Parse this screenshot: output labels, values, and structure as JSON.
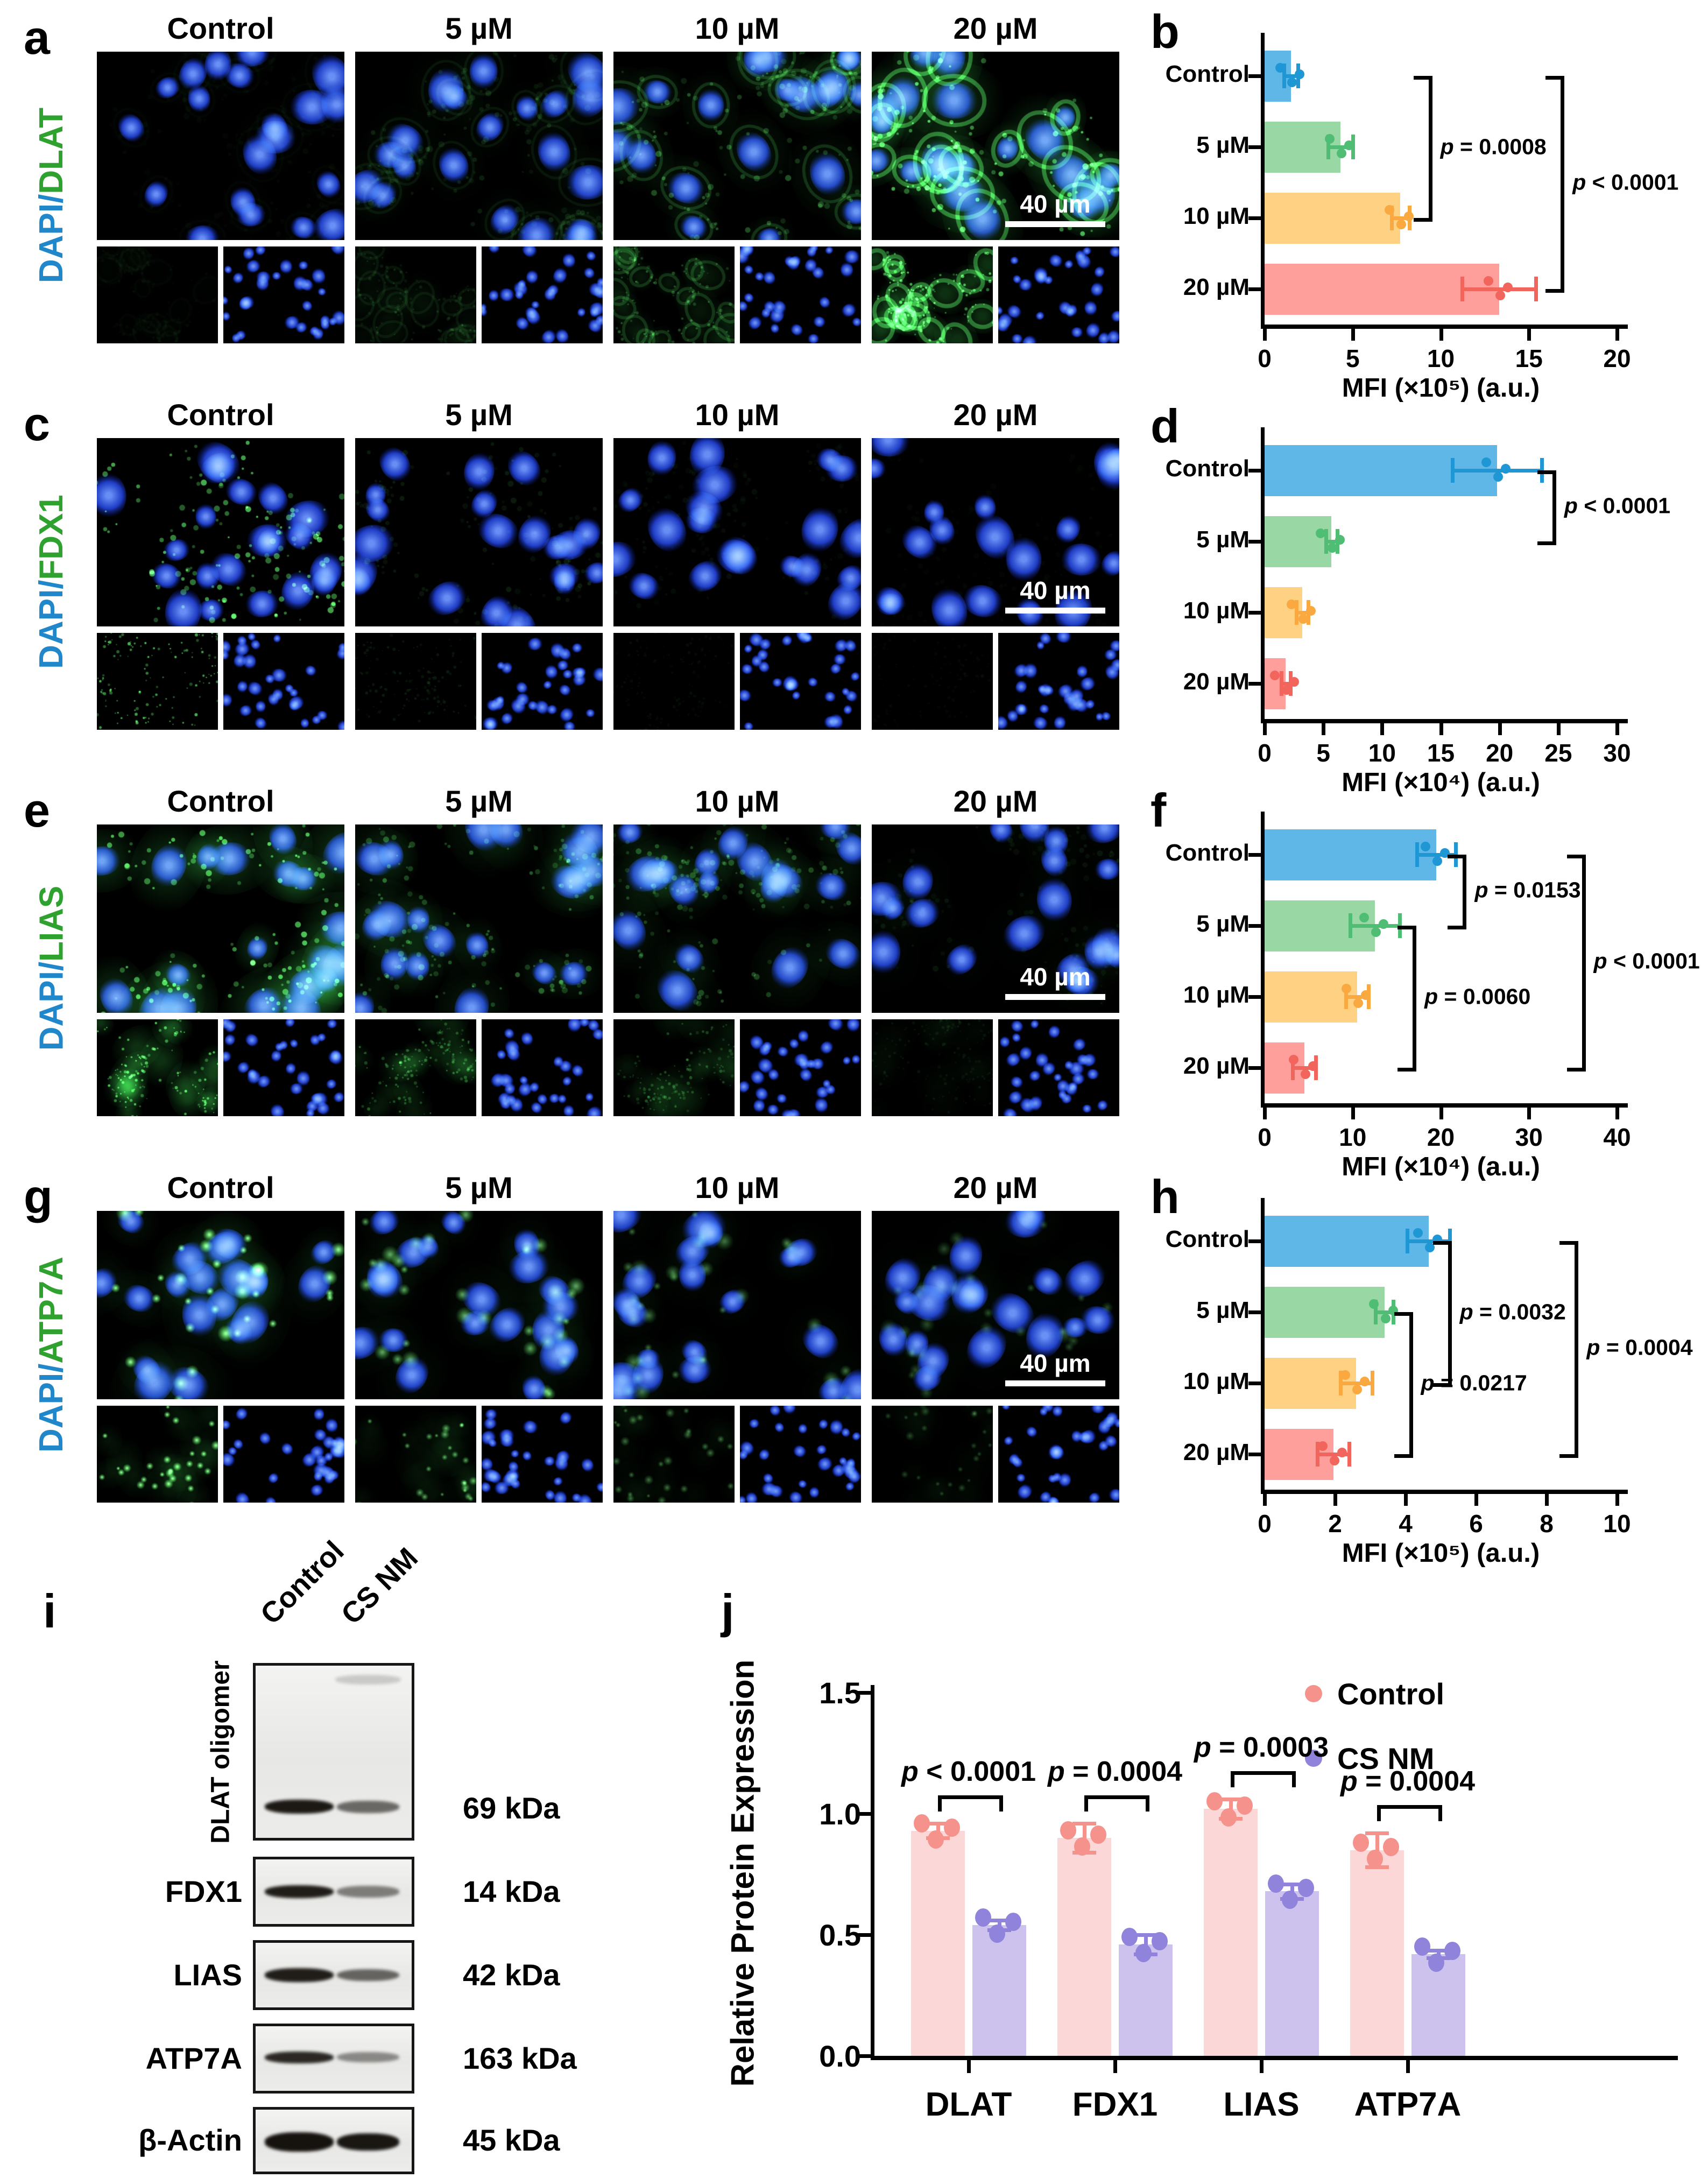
{
  "palette": {
    "bar_colors": [
      "#5FB7E8",
      "#99D8A4",
      "#FFD183",
      "#FF9F9B"
    ],
    "marker_colors": [
      "#1F97D4",
      "#4FBE74",
      "#F9A93F",
      "#F2655C"
    ],
    "stain_blue_color": "#2187CB",
    "stain_green_color": "#2FA12F",
    "axis_color": "#000000",
    "scalebar_color": "#FFFFFF"
  },
  "dose_labels": [
    "Control",
    "5 µM",
    "10 µM",
    "20 µM"
  ],
  "scale_bar_label": "40 µm",
  "microscopy_rows": [
    {
      "letter": "a",
      "stain_blue": "DAPI/",
      "stain_green": "DLAT"
    },
    {
      "letter": "c",
      "stain_blue": "DAPI/",
      "stain_green": "FDX1"
    },
    {
      "letter": "e",
      "stain_blue": "DAPI/",
      "stain_green": "LIAS"
    },
    {
      "letter": "g",
      "stain_blue": "DAPI/",
      "stain_green": "ATP7A"
    }
  ],
  "chart_data": [
    {
      "panel": "b",
      "type": "bar",
      "orientation": "horizontal",
      "categories": [
        "Control",
        "5 µM",
        "10 µM",
        "20 µM"
      ],
      "values": [
        1.5,
        4.3,
        7.7,
        13.3
      ],
      "errors": [
        0.4,
        0.7,
        0.5,
        2.1
      ],
      "xlabel": "MFI (×10⁵) (a.u.)",
      "xlim": [
        0,
        20
      ],
      "xticks": [
        0,
        5,
        10,
        15,
        20
      ],
      "annotations": [
        {
          "label": "p = 0.0008",
          "from": 0,
          "to": 2,
          "x": 9.3
        },
        {
          "label": "p < 0.0001",
          "from": 0,
          "to": 3,
          "x": 16.8
        }
      ]
    },
    {
      "panel": "d",
      "type": "bar",
      "orientation": "horizontal",
      "categories": [
        "Control",
        "5 µM",
        "10 µM",
        "20 µM"
      ],
      "values": [
        19.8,
        5.7,
        3.2,
        1.8
      ],
      "errors": [
        3.8,
        0.5,
        0.5,
        0.4
      ],
      "xlabel": "MFI (×10⁴) (a.u.)",
      "xlim": [
        0,
        30
      ],
      "xticks": [
        0,
        5,
        10,
        15,
        20,
        25,
        30
      ],
      "annotations": [
        {
          "label": "p < 0.0001",
          "from": 0,
          "to": 1,
          "x": 24.5
        }
      ]
    },
    {
      "panel": "f",
      "type": "bar",
      "orientation": "horizontal",
      "categories": [
        "Control",
        "5 µM",
        "10 µM",
        "20 µM"
      ],
      "values": [
        19.5,
        12.5,
        10.5,
        4.5
      ],
      "errors": [
        2.2,
        2.8,
        1.3,
        1.3
      ],
      "xlabel": "MFI (×10⁴) (a.u.)",
      "xlim": [
        0,
        40
      ],
      "xticks": [
        0,
        10,
        20,
        30,
        40
      ],
      "annotations": [
        {
          "label": "p = 0.0153",
          "from": 0,
          "to": 1,
          "x": 22.5
        },
        {
          "label": "p = 0.0060",
          "from": 1,
          "to": 3,
          "x": 16.8
        },
        {
          "label": "p < 0.0001",
          "from": 0,
          "to": 3,
          "x": 36
        }
      ]
    },
    {
      "panel": "h",
      "type": "bar",
      "orientation": "horizontal",
      "categories": [
        "Control",
        "5 µM",
        "10 µM",
        "20 µM"
      ],
      "values": [
        4.65,
        3.4,
        2.6,
        1.95
      ],
      "errors": [
        0.6,
        0.25,
        0.45,
        0.45
      ],
      "xlabel": "MFI (×10⁵) (a.u.)",
      "xlim": [
        0,
        10
      ],
      "xticks": [
        0,
        2,
        4,
        6,
        8,
        10
      ],
      "annotations": [
        {
          "label": "p = 0.0032",
          "from": 0,
          "to": 2,
          "x": 5.2
        },
        {
          "label": "p = 0.0217",
          "from": 1,
          "to": 3,
          "x": 4.1
        },
        {
          "label": "p = 0.0004",
          "from": 0,
          "to": 3,
          "x": 8.8
        }
      ]
    },
    {
      "panel": "j",
      "type": "grouped-bar",
      "orientation": "vertical",
      "categories": [
        "DLAT",
        "FDX1",
        "LIAS",
        "ATP7A"
      ],
      "series": [
        {
          "name": "Control",
          "values": [
            0.93,
            0.9,
            1.02,
            0.85
          ],
          "errors": [
            0.03,
            0.06,
            0.04,
            0.07
          ],
          "bar_color": "#FBD7D8",
          "marker_color": "#F5928C"
        },
        {
          "name": "CS NM",
          "values": [
            0.54,
            0.46,
            0.68,
            0.42
          ],
          "errors": [
            0.02,
            0.04,
            0.03,
            0.015
          ],
          "bar_color": "#CDC1ED",
          "marker_color": "#8F83DB"
        }
      ],
      "ylabel": "Relative Protein Expression",
      "ylim": [
        0,
        1.5
      ],
      "yticks": [
        "0.0",
        "0.5",
        "1.0",
        "1.5"
      ],
      "annotations": [
        {
          "label": "p < 0.0001",
          "group": 0
        },
        {
          "label": "p = 0.0004",
          "group": 1
        },
        {
          "label": "p = 0.0003",
          "group": 2
        },
        {
          "label": "p = 0.0004",
          "group": 3
        }
      ],
      "legend": [
        "Control",
        "CS NM"
      ]
    }
  ],
  "western_blot": {
    "letter": "i",
    "lane_labels": [
      "Control",
      "CS NM"
    ],
    "rows": [
      {
        "label": "DLAT oligomer",
        "kda": "69 kDa"
      },
      {
        "label": "FDX1",
        "kda": "14 kDa"
      },
      {
        "label": "LIAS",
        "kda": "42 kDa"
      },
      {
        "label": "ATP7A",
        "kda": "163 kDa"
      },
      {
        "label": "β-Actin",
        "kda": "45 kDa"
      }
    ]
  }
}
